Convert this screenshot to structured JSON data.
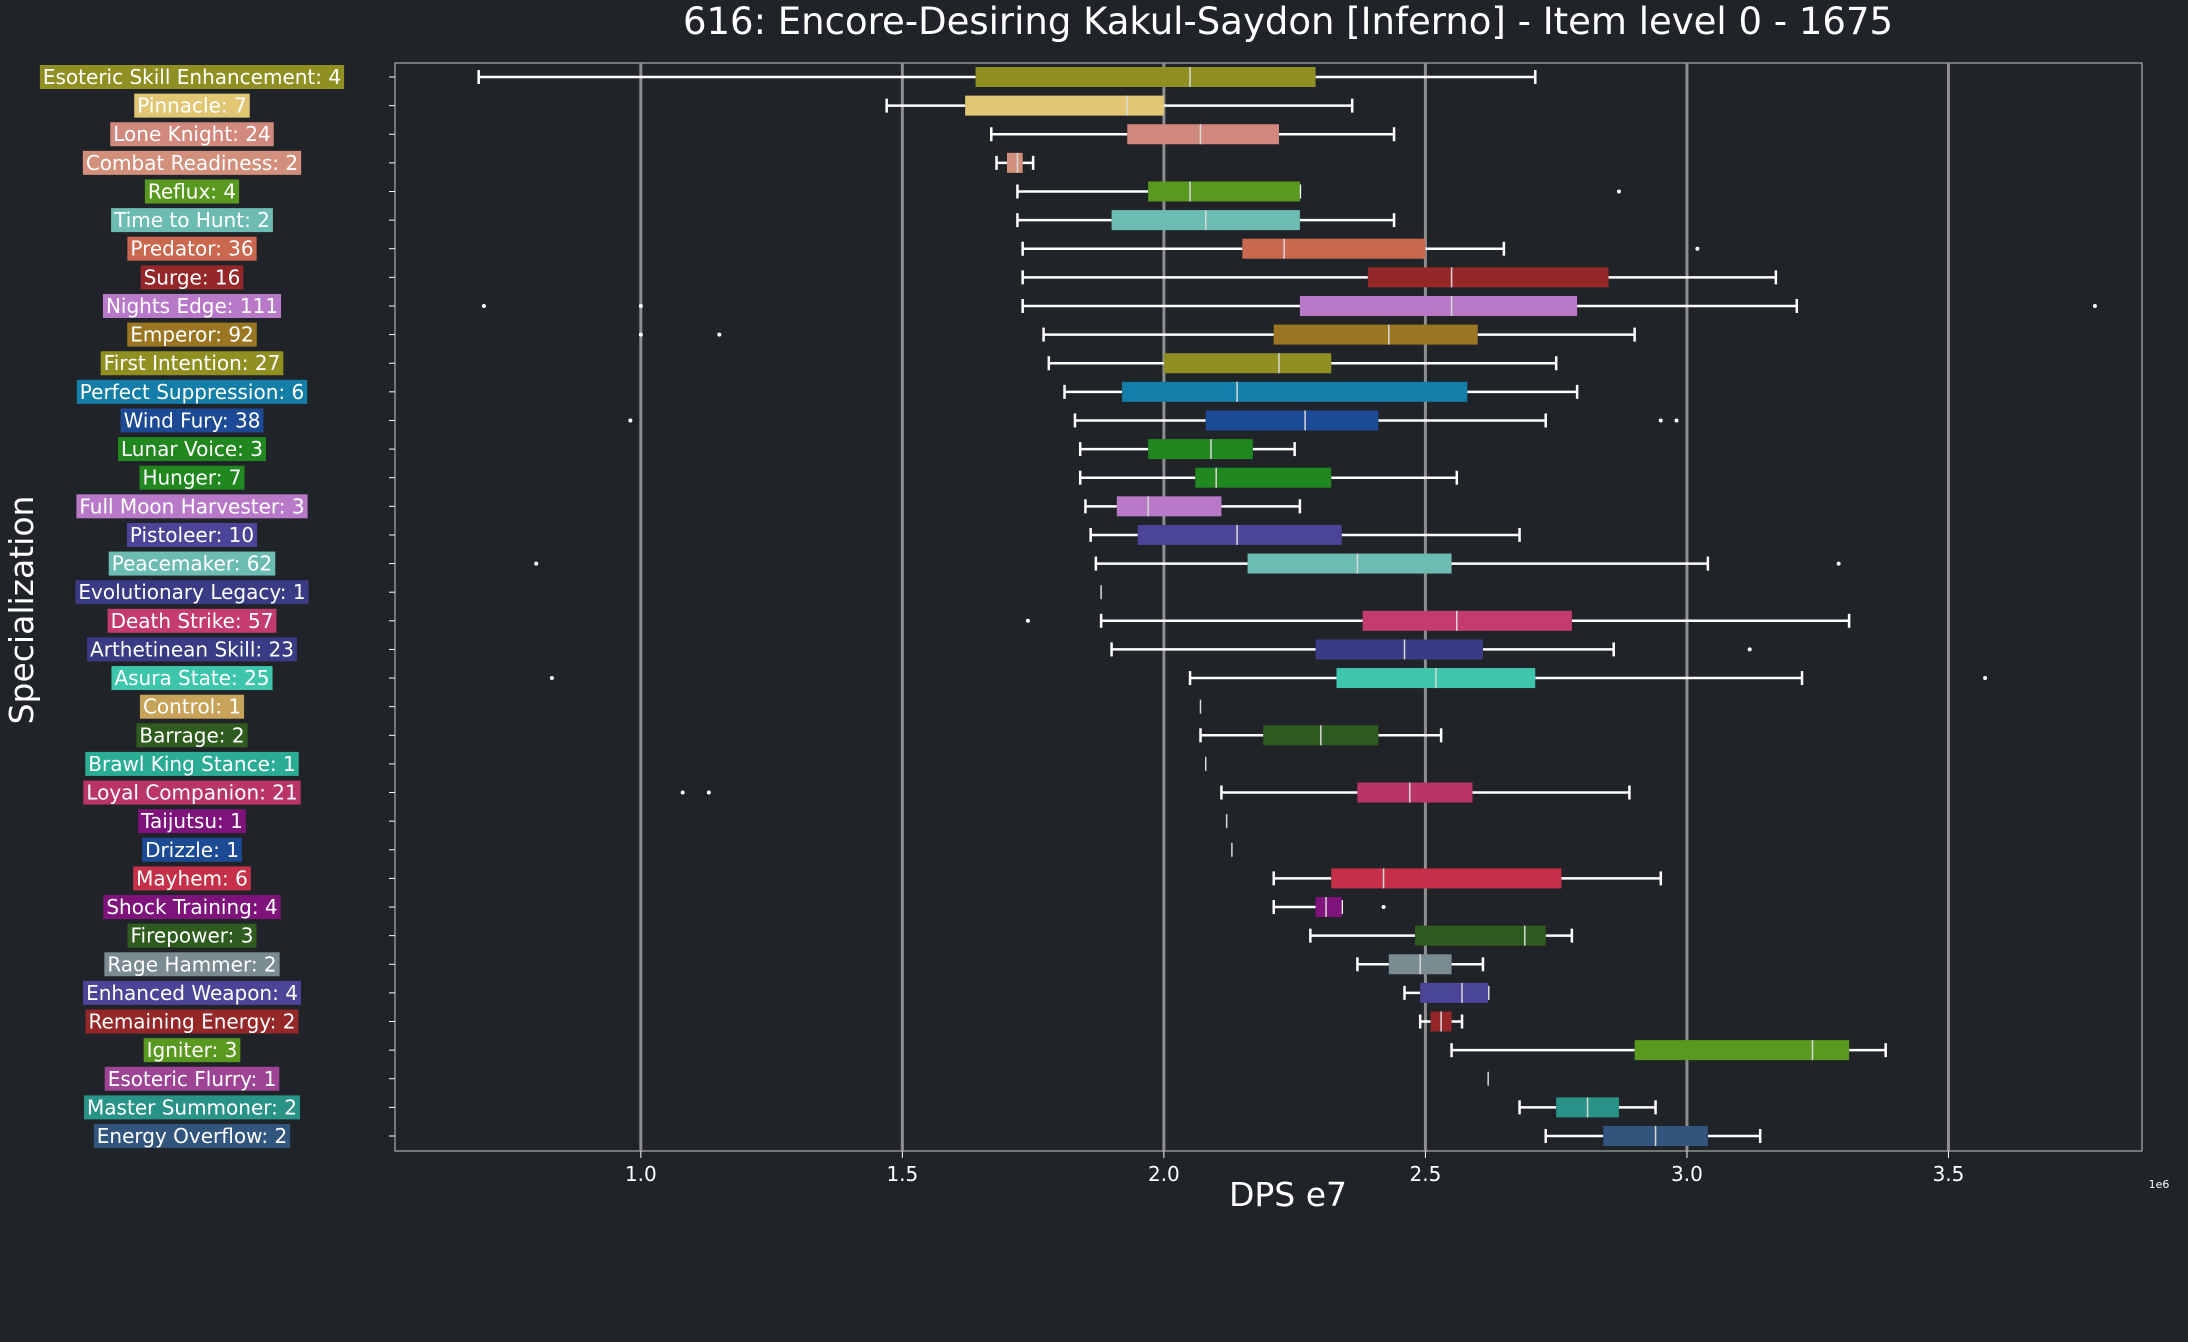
{
  "chart_data": {
    "type": "box",
    "orientation": "horizontal",
    "title": "616: Encore-Desiring Kakul-Saydon [Inferno] - Item level 0 - 1675",
    "xlabel": "DPS e7",
    "ylabel": "Specialization",
    "x_offset_text": "1e6",
    "xlim": [
      0.53,
      3.87
    ],
    "xticks": [
      1.0,
      1.5,
      2.0,
      2.5,
      3.0,
      3.5
    ],
    "xtick_labels": [
      "1.0",
      "1.5",
      "2.0",
      "2.5",
      "3.0",
      "3.5"
    ],
    "grid": "vertical",
    "series": [
      {
        "label": "Esoteric Skill Enhancement: 4",
        "color": "#8f8f22",
        "whislo": 0.69,
        "q1": 1.64,
        "med": 2.05,
        "q3": 2.29,
        "whishi": 2.71,
        "fliers": []
      },
      {
        "label": "Pinnacle: 7",
        "color": "#e1c773",
        "whislo": 1.47,
        "q1": 1.62,
        "med": 1.93,
        "q3": 2.0,
        "whishi": 2.36,
        "fliers": []
      },
      {
        "label": "Lone Knight: 24",
        "color": "#d2897d",
        "whislo": 1.67,
        "q1": 1.93,
        "med": 2.07,
        "q3": 2.22,
        "whishi": 2.44,
        "fliers": []
      },
      {
        "label": "Combat Readiness: 2",
        "color": "#d18f7c",
        "whislo": 1.68,
        "q1": 1.7,
        "med": 1.72,
        "q3": 1.73,
        "whishi": 1.75,
        "fliers": []
      },
      {
        "label": "Reflux: 4",
        "color": "#5a991f",
        "whislo": 1.72,
        "q1": 1.97,
        "med": 2.05,
        "q3": 2.26,
        "whishi": 2.26,
        "fliers": [
          2.87
        ]
      },
      {
        "label": "Time to Hunt: 2",
        "color": "#6dbcb1",
        "whislo": 1.72,
        "q1": 1.9,
        "med": 2.08,
        "q3": 2.26,
        "whishi": 2.44,
        "fliers": []
      },
      {
        "label": "Predator: 36",
        "color": "#c9684e",
        "whislo": 1.73,
        "q1": 2.15,
        "med": 2.23,
        "q3": 2.5,
        "whishi": 2.65,
        "fliers": [
          3.02
        ]
      },
      {
        "label": "Surge: 16",
        "color": "#962729",
        "whislo": 1.73,
        "q1": 2.39,
        "med": 2.55,
        "q3": 2.85,
        "whishi": 3.17,
        "fliers": []
      },
      {
        "label": "Nights Edge: 111",
        "color": "#b87ac8",
        "whislo": 1.73,
        "q1": 2.26,
        "med": 2.55,
        "q3": 2.79,
        "whishi": 3.21,
        "fliers": [
          0.7,
          1.0,
          3.78
        ]
      },
      {
        "label": "Emperor: 92",
        "color": "#9a7622",
        "whislo": 1.77,
        "q1": 2.21,
        "med": 2.43,
        "q3": 2.6,
        "whishi": 2.9,
        "fliers": [
          1.0,
          1.15
        ]
      },
      {
        "label": "First Intention: 27",
        "color": "#8f8f22",
        "whislo": 1.78,
        "q1": 2.0,
        "med": 2.22,
        "q3": 2.32,
        "whishi": 2.75,
        "fliers": []
      },
      {
        "label": "Perfect Suppression: 6",
        "color": "#137ea7",
        "whislo": 1.81,
        "q1": 1.92,
        "med": 2.14,
        "q3": 2.58,
        "whishi": 2.79,
        "fliers": []
      },
      {
        "label": "Wind Fury: 38",
        "color": "#1c4a94",
        "whislo": 1.83,
        "q1": 2.08,
        "med": 2.27,
        "q3": 2.41,
        "whishi": 2.73,
        "fliers": [
          0.98,
          2.95,
          2.98
        ]
      },
      {
        "label": "Lunar Voice: 3",
        "color": "#21871f",
        "whislo": 1.84,
        "q1": 1.97,
        "med": 2.09,
        "q3": 2.17,
        "whishi": 2.25,
        "fliers": []
      },
      {
        "label": "Hunger: 7",
        "color": "#21871f",
        "whislo": 1.84,
        "q1": 2.06,
        "med": 2.1,
        "q3": 2.32,
        "whishi": 2.56,
        "fliers": []
      },
      {
        "label": "Full Moon Harvester: 3",
        "color": "#b87ac8",
        "whislo": 1.85,
        "q1": 1.91,
        "med": 1.97,
        "q3": 2.11,
        "whishi": 2.26,
        "fliers": []
      },
      {
        "label": "Pistoleer: 10",
        "color": "#4b4597",
        "whislo": 1.86,
        "q1": 1.95,
        "med": 2.14,
        "q3": 2.34,
        "whishi": 2.68,
        "fliers": []
      },
      {
        "label": "Peacemaker: 62",
        "color": "#6dbcb1",
        "whislo": 1.87,
        "q1": 2.16,
        "med": 2.37,
        "q3": 2.55,
        "whishi": 3.04,
        "fliers": [
          0.8,
          3.29
        ]
      },
      {
        "label": "Evolutionary Legacy: 1",
        "color": "#393b84",
        "whislo": 1.88,
        "q1": 1.88,
        "med": 1.88,
        "q3": 1.88,
        "whishi": 1.88,
        "fliers": []
      },
      {
        "label": "Death Strike: 57",
        "color": "#c43b6d",
        "whislo": 1.88,
        "q1": 2.38,
        "med": 2.56,
        "q3": 2.78,
        "whishi": 3.31,
        "fliers": [
          1.74
        ]
      },
      {
        "label": "Arthetinean Skill: 23",
        "color": "#393b84",
        "whislo": 1.9,
        "q1": 2.29,
        "med": 2.46,
        "q3": 2.61,
        "whishi": 2.86,
        "fliers": [
          3.12
        ]
      },
      {
        "label": "Asura State: 25",
        "color": "#3ec6ad",
        "whislo": 2.05,
        "q1": 2.33,
        "med": 2.52,
        "q3": 2.71,
        "whishi": 3.22,
        "fliers": [
          0.83,
          3.57
        ]
      },
      {
        "label": "Control: 1",
        "color": "#c8a35a",
        "whislo": 2.07,
        "q1": 2.07,
        "med": 2.07,
        "q3": 2.07,
        "whishi": 2.07,
        "fliers": []
      },
      {
        "label": "Barrage: 2",
        "color": "#2f5b1e",
        "whislo": 2.07,
        "q1": 2.19,
        "med": 2.3,
        "q3": 2.41,
        "whishi": 2.53,
        "fliers": []
      },
      {
        "label": "Brawl King Stance: 1",
        "color": "#2bac94",
        "whislo": 2.08,
        "q1": 2.08,
        "med": 2.08,
        "q3": 2.08,
        "whishi": 2.08,
        "fliers": []
      },
      {
        "label": "Loyal Companion: 21",
        "color": "#b93567",
        "whislo": 2.11,
        "q1": 2.37,
        "med": 2.47,
        "q3": 2.59,
        "whishi": 2.89,
        "fliers": [
          1.08,
          1.13
        ]
      },
      {
        "label": "Taijutsu: 1",
        "color": "#7e137c",
        "whislo": 2.12,
        "q1": 2.12,
        "med": 2.12,
        "q3": 2.12,
        "whishi": 2.12,
        "fliers": []
      },
      {
        "label": "Drizzle: 1",
        "color": "#1c4a94",
        "whislo": 2.13,
        "q1": 2.13,
        "med": 2.13,
        "q3": 2.13,
        "whishi": 2.13,
        "fliers": []
      },
      {
        "label": "Mayhem: 6",
        "color": "#c53048",
        "whislo": 2.21,
        "q1": 2.32,
        "med": 2.42,
        "q3": 2.76,
        "whishi": 2.95,
        "fliers": []
      },
      {
        "label": "Shock Training: 4",
        "color": "#7e137c",
        "whislo": 2.21,
        "q1": 2.29,
        "med": 2.31,
        "q3": 2.34,
        "whishi": 2.34,
        "fliers": [
          2.42
        ]
      },
      {
        "label": "Firepower: 3",
        "color": "#2f5b1e",
        "whislo": 2.28,
        "q1": 2.48,
        "med": 2.69,
        "q3": 2.73,
        "whishi": 2.78,
        "fliers": []
      },
      {
        "label": "Rage Hammer: 2",
        "color": "#7b8b92",
        "whislo": 2.37,
        "q1": 2.43,
        "med": 2.49,
        "q3": 2.55,
        "whishi": 2.61,
        "fliers": []
      },
      {
        "label": "Enhanced Weapon: 4",
        "color": "#4b4597",
        "whislo": 2.46,
        "q1": 2.49,
        "med": 2.57,
        "q3": 2.62,
        "whishi": 2.62,
        "fliers": []
      },
      {
        "label": "Remaining Energy: 2",
        "color": "#962729",
        "whislo": 2.49,
        "q1": 2.51,
        "med": 2.53,
        "q3": 2.55,
        "whishi": 2.57,
        "fliers": []
      },
      {
        "label": "Igniter: 3",
        "color": "#5a991f",
        "whislo": 2.55,
        "q1": 2.9,
        "med": 3.24,
        "q3": 3.31,
        "whishi": 3.38,
        "fliers": []
      },
      {
        "label": "Esoteric Flurry: 1",
        "color": "#9e4494",
        "whislo": 2.62,
        "q1": 2.62,
        "med": 2.62,
        "q3": 2.62,
        "whishi": 2.62,
        "fliers": []
      },
      {
        "label": "Master Summoner: 2",
        "color": "#2a9387",
        "whislo": 2.68,
        "q1": 2.75,
        "med": 2.81,
        "q3": 2.87,
        "whishi": 2.94,
        "fliers": []
      },
      {
        "label": "Energy Overflow: 2",
        "color": "#31557c",
        "whislo": 2.73,
        "q1": 2.84,
        "med": 2.94,
        "q3": 3.04,
        "whishi": 3.14,
        "fliers": []
      }
    ]
  }
}
